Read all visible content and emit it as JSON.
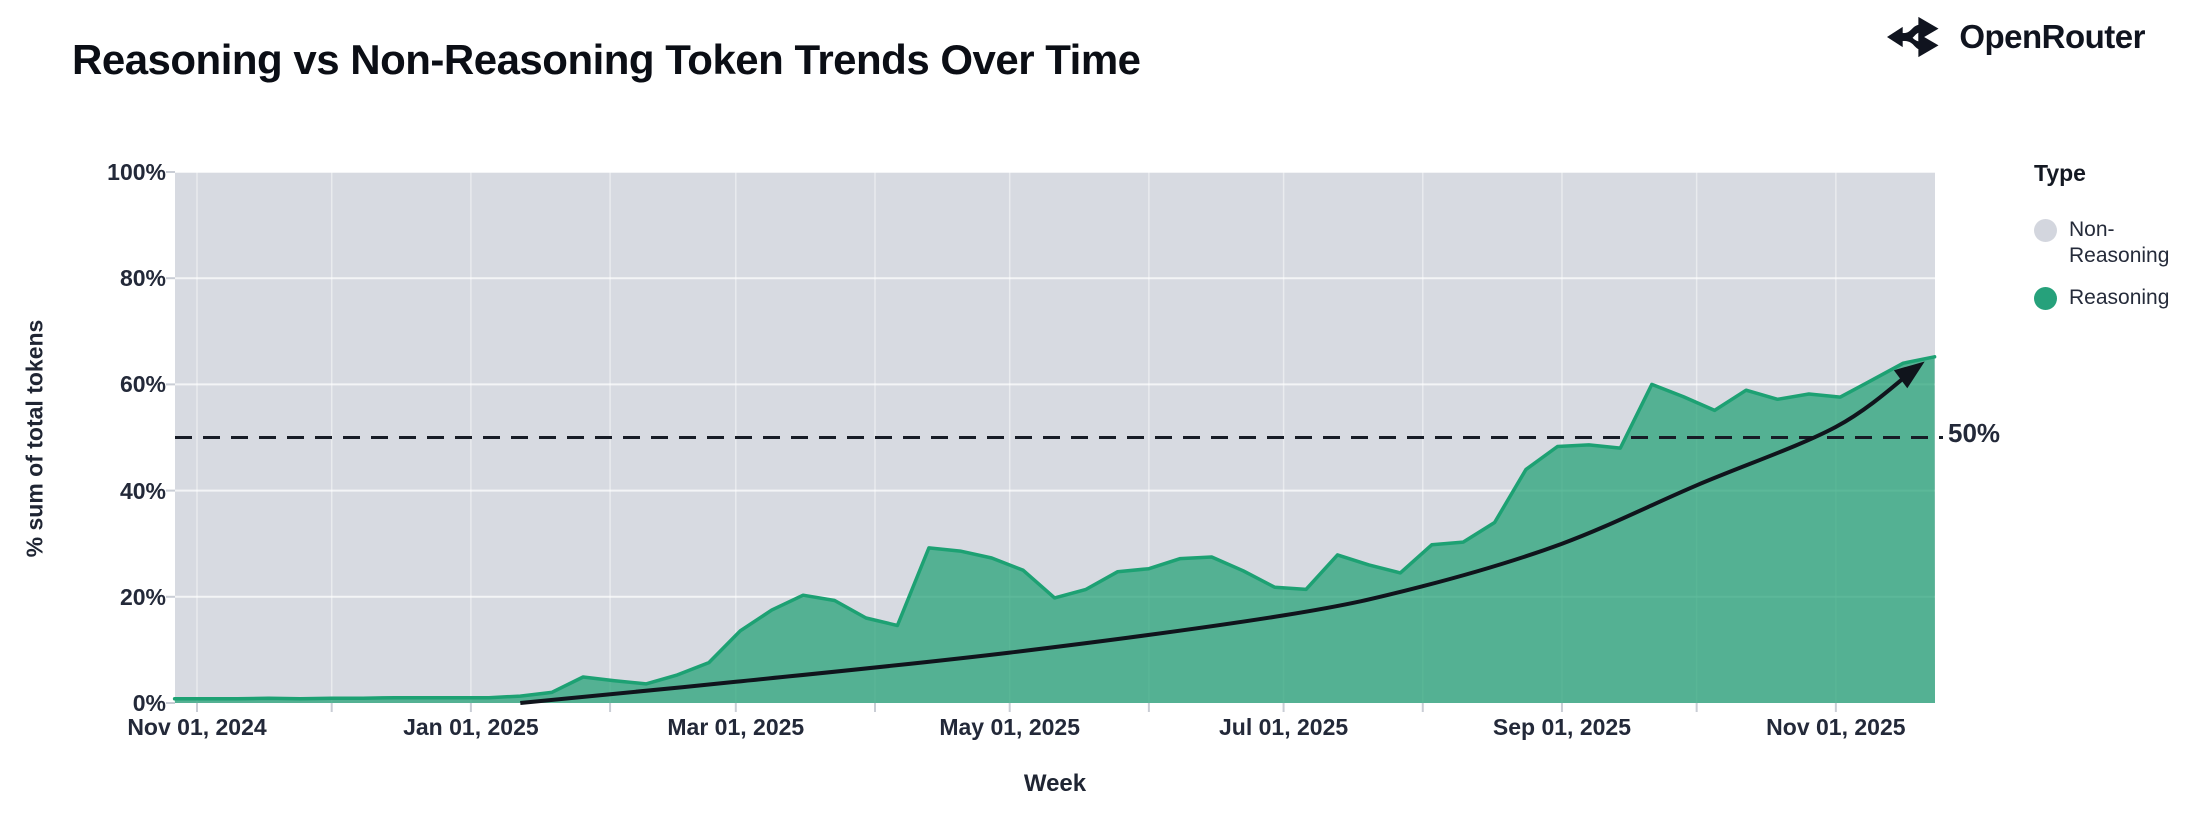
{
  "header": {
    "title": "Reasoning vs Non-Reasoning Token Trends Over Time",
    "brand": "OpenRouter"
  },
  "colors": {
    "plot_bg": "#d7dae1",
    "area_fill": "#21a175",
    "area_fill_opacity": 0.72,
    "area_stroke": "#1da173",
    "grid": "#ffffff",
    "trend": "#10141c",
    "dashed_line": "#171c26",
    "axis_tick": "#c9cdd5",
    "legend_gray": "#d3d6de",
    "legend_green": "#26a17b",
    "text_dark": "#232939"
  },
  "chart_data": {
    "type": "area",
    "stacked_percent": true,
    "title": "Reasoning vs Non-Reasoning Token Trends Over Time",
    "xlabel": "Week",
    "ylabel": "% sum of total tokens",
    "ylim": [
      0,
      100
    ],
    "grid": true,
    "legend_position": "right",
    "y_ticks": [
      {
        "value": 0,
        "label": "0%"
      },
      {
        "value": 20,
        "label": "20%"
      },
      {
        "value": 40,
        "label": "40%"
      },
      {
        "value": 60,
        "label": "60%"
      },
      {
        "value": 80,
        "label": "80%"
      },
      {
        "value": 100,
        "label": "100%"
      }
    ],
    "x_ticks": [
      {
        "date": "2024-11-01",
        "label": "Nov 01, 2024"
      },
      {
        "date": "2025-01-01",
        "label": "Jan 01, 2025"
      },
      {
        "date": "2025-03-01",
        "label": "Mar 01, 2025"
      },
      {
        "date": "2025-05-01",
        "label": "May 01, 2025"
      },
      {
        "date": "2025-07-01",
        "label": "Jul 01, 2025"
      },
      {
        "date": "2025-09-01",
        "label": "Sep 01, 2025"
      },
      {
        "date": "2025-11-01",
        "label": "Nov 01, 2025"
      }
    ],
    "x_minor_ticks": [
      "2024-11-01",
      "2024-12-01",
      "2025-01-01",
      "2025-02-01",
      "2025-03-01",
      "2025-04-01",
      "2025-05-01",
      "2025-06-01",
      "2025-07-01",
      "2025-08-01",
      "2025-09-01",
      "2025-10-01",
      "2025-11-01"
    ],
    "series": [
      {
        "name": "Reasoning",
        "weeks": [
          "2024-10-27",
          "2024-11-03",
          "2024-11-10",
          "2024-11-17",
          "2024-11-24",
          "2024-12-01",
          "2024-12-08",
          "2024-12-15",
          "2024-12-22",
          "2024-12-29",
          "2025-01-05",
          "2025-01-12",
          "2025-01-19",
          "2025-01-26",
          "2025-02-02",
          "2025-02-09",
          "2025-02-16",
          "2025-02-23",
          "2025-03-02",
          "2025-03-09",
          "2025-03-16",
          "2025-03-23",
          "2025-03-30",
          "2025-04-06",
          "2025-04-13",
          "2025-04-20",
          "2025-04-27",
          "2025-05-04",
          "2025-05-11",
          "2025-05-18",
          "2025-05-25",
          "2025-06-01",
          "2025-06-08",
          "2025-06-15",
          "2025-06-22",
          "2025-06-29",
          "2025-07-06",
          "2025-07-13",
          "2025-07-20",
          "2025-07-27",
          "2025-08-03",
          "2025-08-10",
          "2025-08-17",
          "2025-08-24",
          "2025-08-31",
          "2025-09-07",
          "2025-09-14",
          "2025-09-21",
          "2025-09-28",
          "2025-10-05",
          "2025-10-12",
          "2025-10-19",
          "2025-10-26",
          "2025-11-02",
          "2025-11-09",
          "2025-11-16",
          "2025-11-23"
        ],
        "values": [
          0.8,
          0.8,
          0.8,
          0.9,
          0.8,
          0.9,
          0.9,
          1.0,
          1.0,
          1.0,
          1.0,
          1.3,
          2.0,
          4.9,
          4.2,
          3.6,
          5.3,
          7.6,
          13.6,
          17.5,
          20.3,
          19.3,
          16.0,
          14.6,
          29.2,
          28.6,
          27.3,
          25.0,
          19.8,
          21.4,
          24.7,
          25.3,
          27.2,
          27.5,
          24.9,
          21.8,
          21.4,
          27.9,
          26.0,
          24.5,
          29.8,
          30.3,
          34.0,
          44.0,
          48.3,
          48.6,
          48.0,
          60.0,
          57.7,
          55.1,
          58.9,
          57.2,
          58.2,
          57.6,
          60.8,
          64.0,
          65.2
        ]
      },
      {
        "name": "Non-Reasoning",
        "note": "complement series: 100 minus Reasoning (rendered as the gray background of the 100% stacked area)"
      }
    ],
    "annotations": {
      "fifty_line": {
        "value": 50,
        "label": "50%"
      },
      "trend_arrow": {
        "points": [
          [
            "2025-01-12",
            0
          ],
          [
            "2025-03-01",
            4
          ],
          [
            "2025-05-01",
            9.5
          ],
          [
            "2025-07-01",
            16.5
          ],
          [
            "2025-08-01",
            22
          ],
          [
            "2025-09-01",
            30
          ],
          [
            "2025-10-01",
            41
          ],
          [
            "2025-11-01",
            52
          ],
          [
            "2025-11-19",
            63.2
          ]
        ]
      }
    },
    "legend": {
      "title": "Type",
      "items": [
        {
          "label": "Non-Reasoning",
          "color": "#d3d6de"
        },
        {
          "label": "Reasoning",
          "color": "#26a17b"
        }
      ]
    }
  }
}
